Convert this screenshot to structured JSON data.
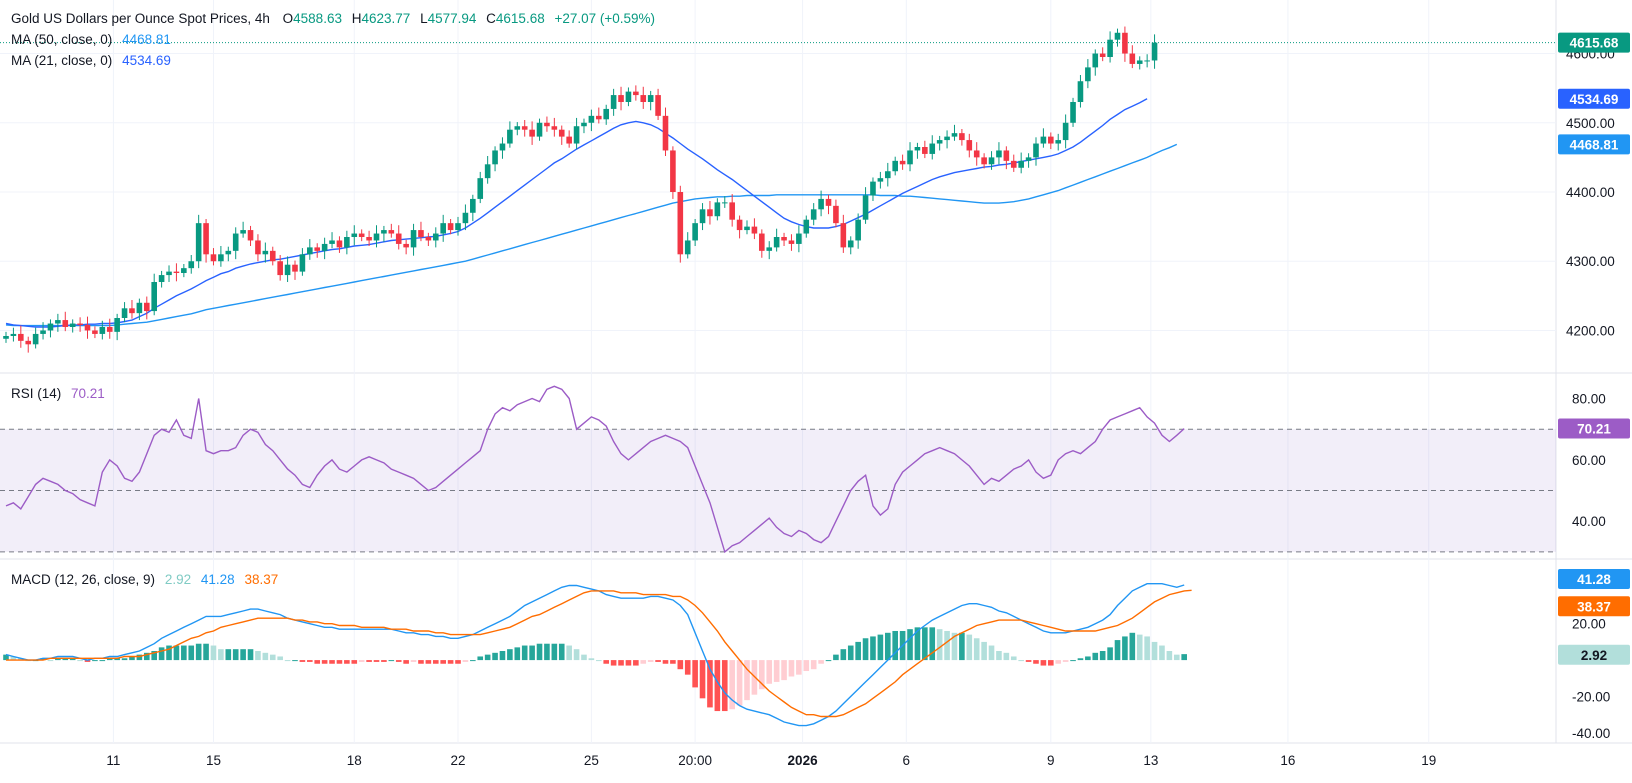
{
  "header": {
    "title": "Gold US Dollars per Ounce Spot Prices, 4h",
    "ohlc": {
      "o_label": "O",
      "o": "4588.63",
      "h_label": "H",
      "h": "4623.77",
      "l_label": "L",
      "l": "4577.94",
      "c_label": "C",
      "c": "4615.68",
      "change": "+27.07 (+0.59%)"
    },
    "ma50_label": "MA (50, close, 0)",
    "ma50_value": "4468.81",
    "ma21_label": "MA (21, close, 0)",
    "ma21_value": "4534.69"
  },
  "rsi_legend": {
    "label": "RSI (14)",
    "value": "70.21"
  },
  "macd_legend": {
    "label": "MACD (12, 26, close, 9)",
    "hist": "2.92",
    "macd": "41.28",
    "signal": "38.37"
  },
  "colors": {
    "up": "#089981",
    "down": "#f23645",
    "ma21": "#2962ff",
    "ma50": "#2196f3",
    "rsi": "#9c5cc6",
    "macd_line": "#2196f3",
    "signal_line": "#ff6d00",
    "hist_up_strong": "#26a69a",
    "hist_up_weak": "#b2dfdb",
    "hist_down_strong": "#ff5252",
    "hist_down_weak": "#ffcdd2"
  },
  "chart_data": [
    {
      "type": "candlestick",
      "title": "Gold US Dollars per Ounce Spot Prices, 4h",
      "ylim": [
        4140,
        4660
      ],
      "y_ticks": [
        "4200.00",
        "4300.00",
        "4400.00",
        "4500.00",
        "4600.00"
      ],
      "x_ticks": [
        "11",
        "15",
        "18",
        "22",
        "25",
        "20:00",
        "2026",
        "6",
        "9",
        "13",
        "16",
        "19"
      ],
      "bold_x_tick": "2026",
      "last_price": "4615.68",
      "badges": [
        "4615.68",
        "4534.69",
        "4468.81"
      ],
      "close": [
        4192,
        4195,
        4185,
        4180,
        4195,
        4200,
        4210,
        4215,
        4205,
        4210,
        4208,
        4200,
        4195,
        4205,
        4198,
        4218,
        4232,
        4225,
        4240,
        4228,
        4270,
        4280,
        4285,
        4283,
        4290,
        4300,
        4355,
        4310,
        4300,
        4310,
        4315,
        4340,
        4345,
        4330,
        4310,
        4315,
        4300,
        4280,
        4295,
        4285,
        4310,
        4320,
        4315,
        4325,
        4330,
        4320,
        4335,
        4340,
        4335,
        4330,
        4340,
        4345,
        4340,
        4325,
        4320,
        4345,
        4335,
        4330,
        4340,
        4355,
        4345,
        4355,
        4370,
        4390,
        4420,
        4440,
        4460,
        4470,
        4490,
        4495,
        4490,
        4480,
        4500,
        4495,
        4490,
        4480,
        4470,
        4495,
        4500,
        4510,
        4505,
        4520,
        4540,
        4530,
        4545,
        4540,
        4530,
        4540,
        4510,
        4460,
        4400,
        4310,
        4330,
        4355,
        4375,
        4365,
        4385,
        4385,
        4360,
        4345,
        4350,
        4340,
        4315,
        4320,
        4335,
        4330,
        4325,
        4340,
        4360,
        4375,
        4390,
        4380,
        4355,
        4320,
        4330,
        4360,
        4395,
        4415,
        4420,
        4430,
        4445,
        4440,
        4460,
        4465,
        4455,
        4470,
        4475,
        4480,
        4485,
        4475,
        4460,
        4450,
        4440,
        4450,
        4460,
        4445,
        4435,
        4445,
        4450,
        4470,
        4480,
        4470,
        4475,
        4500,
        4530,
        4560,
        4580,
        4600,
        4595,
        4620,
        4630,
        4600,
        4585,
        4590,
        4590,
        4615.68
      ],
      "ma21": [
        4210,
        4208,
        4207,
        4206,
        4205,
        4205,
        4205,
        4206,
        4207,
        4208,
        4208,
        4209,
        4209,
        4210,
        4210,
        4211,
        4213,
        4215,
        4220,
        4225,
        4232,
        4238,
        4244,
        4250,
        4255,
        4260,
        4266,
        4272,
        4277,
        4282,
        4285,
        4290,
        4293,
        4296,
        4298,
        4300,
        4302,
        4303,
        4305,
        4307,
        4309,
        4311,
        4313,
        4315,
        4317,
        4318,
        4320,
        4322,
        4323,
        4324,
        4326,
        4328,
        4330,
        4331,
        4332,
        4333,
        4334,
        4335,
        4336,
        4338,
        4340,
        4343,
        4348,
        4355,
        4362,
        4370,
        4378,
        4386,
        4394,
        4402,
        4410,
        4418,
        4426,
        4434,
        4442,
        4448,
        4455,
        4462,
        4468,
        4474,
        4480,
        4486,
        4492,
        4497,
        4500,
        4502,
        4500,
        4497,
        4492,
        4485,
        4478,
        4470,
        4462,
        4455,
        4448,
        4440,
        4432,
        4425,
        4418,
        4410,
        4402,
        4394,
        4386,
        4378,
        4370,
        4362,
        4357,
        4353,
        4350,
        4348,
        4348,
        4348,
        4350,
        4353,
        4358,
        4363,
        4368,
        4374,
        4380,
        4386,
        4392,
        4398,
        4403,
        4408,
        4413,
        4418,
        4422,
        4425,
        4428,
        4430,
        4432,
        4434,
        4436,
        4437,
        4439,
        4440,
        4442,
        4444,
        4446,
        4448,
        4450,
        4452,
        4455,
        4460,
        4465,
        4472,
        4480,
        4488,
        4496,
        4505,
        4512,
        4519,
        4524,
        4529,
        4534.69
      ],
      "ma50": [
        4208,
        4207,
        4207,
        4207,
        4207,
        4207,
        4207,
        4207,
        4207,
        4207,
        4207,
        4207,
        4207,
        4207,
        4207,
        4208,
        4209,
        4210,
        4211,
        4212,
        4214,
        4216,
        4218,
        4220,
        4222,
        4224,
        4227,
        4230,
        4232,
        4234,
        4236,
        4238,
        4240,
        4242,
        4244,
        4246,
        4248,
        4250,
        4252,
        4254,
        4256,
        4258,
        4260,
        4262,
        4264,
        4266,
        4268,
        4270,
        4272,
        4274,
        4276,
        4278,
        4280,
        4282,
        4284,
        4286,
        4288,
        4290,
        4292,
        4294,
        4296,
        4298,
        4300,
        4303,
        4306,
        4309,
        4312,
        4315,
        4318,
        4321,
        4324,
        4327,
        4330,
        4333,
        4336,
        4339,
        4342,
        4345,
        4348,
        4351,
        4354,
        4357,
        4360,
        4363,
        4366,
        4369,
        4372,
        4375,
        4378,
        4381,
        4384,
        4386,
        4388,
        4390,
        4391,
        4392,
        4393,
        4393,
        4394,
        4394,
        4395,
        4395,
        4395,
        4395,
        4396,
        4396,
        4396,
        4396,
        4396,
        4396,
        4396,
        4396,
        4396,
        4396,
        4396,
        4396,
        4396,
        4396,
        4395,
        4395,
        4395,
        4394,
        4394,
        4393,
        4392,
        4391,
        4390,
        4389,
        4388,
        4387,
        4386,
        4385,
        4384,
        4384,
        4384,
        4385,
        4386,
        4388,
        4390,
        4393,
        4396,
        4399,
        4402,
        4406,
        4410,
        4414,
        4418,
        4422,
        4426,
        4430,
        4434,
        4438,
        4442,
        4446,
        4450,
        4455,
        4460,
        4464,
        4468.81
      ]
    },
    {
      "type": "line",
      "title": "RSI (14)",
      "ylim": [
        28,
        88
      ],
      "y_ticks": [
        "40.00",
        "60.00",
        "80.00"
      ],
      "band": [
        30,
        70
      ],
      "midline": 50,
      "series": [
        {
          "name": "RSI (14)",
          "values": [
            45,
            46,
            44,
            48,
            52,
            54,
            53,
            52,
            50,
            49,
            47,
            46,
            45,
            56,
            60,
            58,
            54,
            53,
            56,
            62,
            68,
            70,
            69,
            73,
            68,
            67,
            80,
            63,
            62,
            63,
            63,
            64,
            68,
            70,
            69,
            65,
            63,
            60,
            57,
            55,
            52,
            51,
            55,
            58,
            60,
            57,
            56,
            58,
            60,
            61,
            60,
            59,
            57,
            56,
            55,
            54,
            52,
            50,
            51,
            53,
            55,
            57,
            59,
            61,
            63,
            70,
            75,
            77,
            76,
            78,
            79,
            80,
            79,
            83,
            84,
            83,
            80,
            70,
            72,
            74,
            73,
            71,
            66,
            62,
            60,
            62,
            64,
            66,
            67,
            68,
            67,
            66,
            64,
            58,
            52,
            46,
            38,
            30,
            32,
            33,
            35,
            37,
            39,
            41,
            38,
            36,
            35,
            37,
            36,
            34,
            33,
            35,
            40,
            45,
            50,
            53,
            55,
            45,
            42,
            44,
            52,
            56,
            58,
            60,
            62,
            63,
            64,
            63,
            62,
            60,
            58,
            55,
            52,
            54,
            53,
            55,
            57,
            58,
            60,
            56,
            54,
            55,
            60,
            62,
            63,
            62,
            64,
            66,
            70,
            73,
            74,
            75,
            76,
            77,
            74,
            72,
            68,
            66,
            68,
            70.21
          ]
        }
      ]
    },
    {
      "type": "bar",
      "title": "MACD (12, 26, close, 9)",
      "ylim": [
        -45,
        55
      ],
      "y_ticks": [
        "-40.00",
        "-20.00",
        "20.00"
      ],
      "series": [
        {
          "name": "MACD",
          "values": [
            3,
            2,
            1,
            0,
            0,
            1,
            1,
            2,
            2,
            2,
            1,
            0,
            1,
            1,
            2,
            2,
            3,
            4,
            5,
            7,
            9,
            12,
            14,
            16,
            18,
            20,
            22,
            24,
            24,
            24,
            25,
            26,
            27,
            28,
            28,
            27,
            26,
            25,
            23,
            22,
            21,
            20,
            19,
            18,
            18,
            17,
            17,
            17,
            17,
            17,
            17,
            17,
            17,
            16,
            15,
            15,
            14,
            14,
            13,
            13,
            12,
            12,
            13,
            14,
            16,
            18,
            20,
            22,
            24,
            27,
            30,
            32,
            34,
            36,
            38,
            40,
            41,
            41,
            40,
            39,
            38,
            36,
            35,
            34,
            34,
            34,
            34,
            35,
            35,
            34,
            33,
            30,
            25,
            15,
            5,
            -5,
            -12,
            -18,
            -22,
            -25,
            -27,
            -28,
            -29,
            -30,
            -32,
            -34,
            -35,
            -36,
            -36,
            -35,
            -33,
            -31,
            -28,
            -24,
            -20,
            -16,
            -12,
            -8,
            -4,
            0,
            4,
            8,
            12,
            16,
            19,
            22,
            24,
            26,
            28,
            30,
            31,
            31,
            30,
            29,
            27,
            26,
            24,
            22,
            20,
            18,
            16,
            15,
            15,
            15,
            16,
            17,
            18,
            20,
            22,
            25,
            30,
            34,
            38,
            40,
            42,
            42,
            42,
            41,
            40,
            41.28
          ]
        },
        {
          "name": "Signal",
          "values": [
            0,
            0,
            0,
            0,
            0,
            0,
            1,
            1,
            1,
            1,
            1,
            1,
            1,
            1,
            1,
            1,
            2,
            2,
            2,
            3,
            4,
            5,
            6,
            8,
            10,
            12,
            13,
            15,
            16,
            18,
            19,
            20,
            21,
            22,
            23,
            23,
            23,
            23,
            23,
            22,
            22,
            21,
            21,
            20,
            20,
            19,
            19,
            19,
            18,
            18,
            18,
            18,
            17,
            17,
            17,
            16,
            16,
            16,
            15,
            15,
            14,
            14,
            14,
            14,
            14,
            15,
            16,
            17,
            18,
            20,
            22,
            24,
            25,
            27,
            29,
            31,
            33,
            35,
            37,
            38,
            38,
            38,
            38,
            37,
            37,
            37,
            36,
            36,
            36,
            36,
            35,
            35,
            33,
            30,
            26,
            21,
            16,
            10,
            5,
            0,
            -5,
            -9,
            -13,
            -17,
            -20,
            -23,
            -26,
            -28,
            -30,
            -30,
            -31,
            -31,
            -31,
            -30,
            -28,
            -26,
            -24,
            -21,
            -18,
            -15,
            -12,
            -8,
            -5,
            -2,
            1,
            4,
            7,
            10,
            13,
            15,
            17,
            19,
            20,
            21,
            22,
            22,
            22,
            22,
            21,
            20,
            19,
            18,
            17,
            16,
            16,
            16,
            16,
            16,
            17,
            18,
            19,
            21,
            23,
            26,
            29,
            32,
            34,
            36,
            37,
            38,
            38.37
          ]
        }
      ]
    }
  ]
}
